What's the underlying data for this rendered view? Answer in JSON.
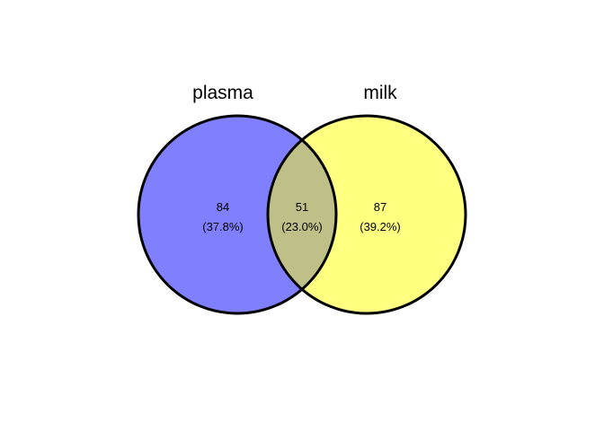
{
  "sets": [
    {
      "name": "plasma",
      "color": "#8080ff"
    },
    {
      "name": "milk",
      "color": "#ffff80"
    }
  ],
  "overlap_color": "#bfbf88",
  "outline_color": "#000000",
  "regions": {
    "plasma_only": {
      "count": "84",
      "percent": "(37.8%)"
    },
    "both": {
      "count": "51",
      "percent": "(23.0%)"
    },
    "milk_only": {
      "count": "87",
      "percent": "(39.2%)"
    }
  }
}
